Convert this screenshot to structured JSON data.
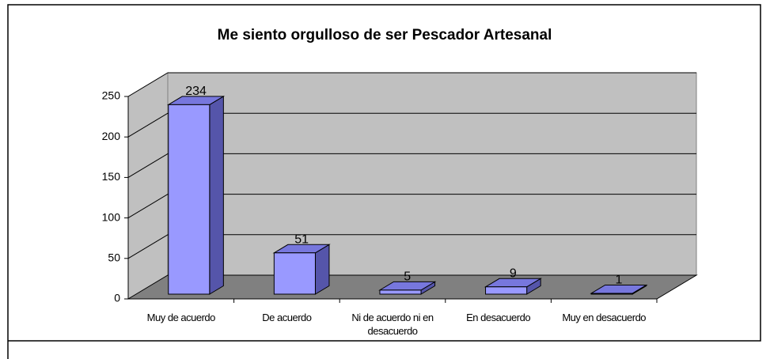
{
  "chart_data": {
    "type": "bar3d",
    "title": "Me siento orgulloso de ser Pescador Artesanal",
    "categories": [
      "Muy de acuerdo",
      "De acuerdo",
      "Ni de acuerdo ni en desacuerdo",
      "En desacuerdo",
      "Muy en desacuerdo"
    ],
    "values": [
      234,
      51,
      5,
      9,
      1
    ],
    "color": "#9999ff",
    "ylim": [
      0,
      250
    ],
    "yticks": [
      0,
      50,
      100,
      150,
      200,
      250
    ],
    "grid": true
  }
}
